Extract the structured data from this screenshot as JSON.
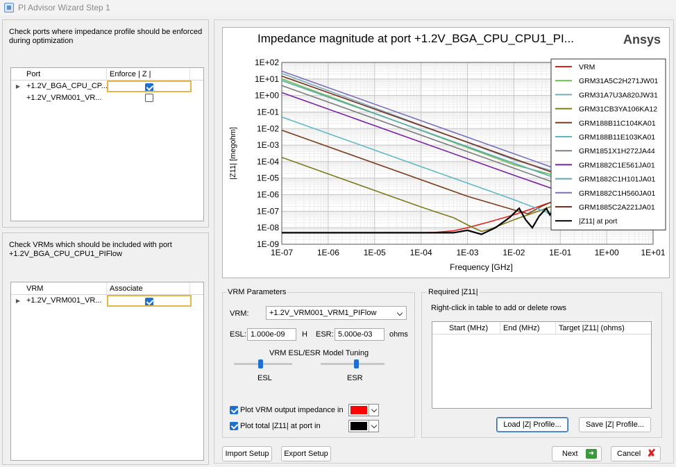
{
  "window": {
    "title": "PI Advisor Wizard Step 1"
  },
  "ports_panel": {
    "instructions": "Check ports where impedance profile should be enforced during optimization",
    "columns": [
      "Port",
      "Enforce | Z |"
    ],
    "rows": [
      {
        "port": "+1.2V_BGA_CPU_CP...",
        "enforce": true
      },
      {
        "port": "+1.2V_VRM001_VR...",
        "enforce": false
      }
    ]
  },
  "vrm_panel": {
    "instructions": "Check VRMs which should be included with port +1.2V_BGA_CPU_CPU1_PIFlow",
    "columns": [
      "VRM",
      "Associate"
    ],
    "rows": [
      {
        "vrm": "+1.2V_VRM001_VR...",
        "associate": true
      }
    ]
  },
  "chart_data": {
    "type": "line",
    "title": "Impedance magnitude at port +1.2V_BGA_CPU_CPU1_PI...",
    "brand": "Ansys",
    "xlabel": "Frequency [GHz]",
    "ylabel": "|Z11| [megohm]",
    "xscale": "log",
    "yscale": "log",
    "xlim": [
      1e-07,
      10
    ],
    "ylim": [
      1e-09,
      100
    ],
    "x_ticks": [
      "1E-07",
      "1E-06",
      "1E-05",
      "1E-04",
      "1E-03",
      "1E-02",
      "1E-01",
      "1E+00",
      "1E+01"
    ],
    "y_ticks": [
      "1E-09",
      "1E-08",
      "1E-07",
      "1E-06",
      "1E-05",
      "1E-04",
      "1E-03",
      "1E-02",
      "1E-01",
      "1E+00",
      "1E+01",
      "1E+02"
    ],
    "grid": true,
    "legend_position": "top-right",
    "series": [
      {
        "name": "VRM",
        "color": "#e8201c",
        "points": [
          [
            1e-07,
            5e-09
          ],
          [
            0.0001,
            5e-09
          ],
          [
            0.0002,
            5.2e-09
          ],
          [
            0.0005,
            6.5e-09
          ],
          [
            0.001,
            1e-08
          ],
          [
            0.003,
            2.3e-08
          ],
          [
            0.01,
            6e-08
          ],
          [
            0.03,
            1.7e-07
          ],
          [
            0.1,
            5.5e-07
          ]
        ]
      },
      {
        "name": "GRM31A5C2H271JW01",
        "color": "#6fbf4f",
        "points": [
          [
            1e-07,
            10
          ],
          [
            0.01,
            6.5e-05
          ],
          [
            0.1,
            1.2e-05
          ]
        ]
      },
      {
        "name": "GRM31A7U3A820JW31",
        "color": "#7aa9b8",
        "points": [
          [
            1e-07,
            22
          ],
          [
            0.01,
            0.00013
          ],
          [
            0.1,
            2e-05
          ]
        ]
      },
      {
        "name": "GRM31CB3YA106KA12",
        "color": "#7d7a17",
        "points": [
          [
            1e-07,
            0.00018
          ],
          [
            0.0001,
            1.8e-07
          ],
          [
            0.0005,
            4e-08
          ],
          [
            0.001,
            1.5e-08
          ],
          [
            0.002,
            6e-09
          ],
          [
            0.003,
            8e-09
          ],
          [
            0.01,
            3e-08
          ],
          [
            0.1,
            3e-07
          ]
        ]
      },
      {
        "name": "GRM188B11C104KA01",
        "color": "#7a3a1a",
        "points": [
          [
            1e-07,
            0.008
          ],
          [
            0.0001,
            8e-06
          ],
          [
            0.001,
            8e-07
          ],
          [
            0.01,
            1.2e-07
          ],
          [
            0.02,
            7e-08
          ],
          [
            0.04,
            2e-07
          ],
          [
            0.1,
            6e-07
          ]
        ]
      },
      {
        "name": "GRM188B11E103KA01",
        "color": "#5fb7c4",
        "points": [
          [
            1e-07,
            0.05
          ],
          [
            0.0001,
            5e-05
          ],
          [
            0.001,
            5e-06
          ],
          [
            0.01,
            5e-07
          ],
          [
            0.05,
            9e-08
          ],
          [
            0.06,
            6e-08
          ],
          [
            0.08,
            1.2e-07
          ],
          [
            0.1,
            2e-07
          ]
        ]
      },
      {
        "name": "GRM1851X1H272JA44",
        "color": "#7d7d7d",
        "points": [
          [
            1e-07,
            4
          ],
          [
            0.01,
            4e-05
          ],
          [
            0.1,
            4e-06
          ]
        ]
      },
      {
        "name": "GRM1882C1E561JA01",
        "color": "#7a1fa5",
        "points": [
          [
            1e-07,
            1.5
          ],
          [
            0.01,
            1.5e-05
          ],
          [
            0.1,
            1.6e-06
          ]
        ]
      },
      {
        "name": "GRM1882C1H101JA01",
        "color": "#5aa8b0",
        "points": [
          [
            1e-07,
            8
          ],
          [
            0.01,
            8e-05
          ],
          [
            0.1,
            8e-06
          ]
        ]
      },
      {
        "name": "GRM1882C1H560JA01",
        "color": "#7a6fbf",
        "points": [
          [
            1e-07,
            30
          ],
          [
            0.01,
            0.0003
          ],
          [
            0.1,
            3e-05
          ]
        ]
      },
      {
        "name": "GRM1885C2A221JA01",
        "color": "#7a2d1f",
        "points": [
          [
            1e-07,
            15
          ],
          [
            0.01,
            0.00015
          ],
          [
            0.1,
            1.5e-05
          ]
        ]
      },
      {
        "name": "|Z11| at port",
        "color": "#000000",
        "points": [
          [
            1e-07,
            5e-09
          ],
          [
            0.0001,
            5e-09
          ],
          [
            0.0005,
            5e-09
          ],
          [
            0.001,
            7e-09
          ],
          [
            0.002,
            4e-09
          ],
          [
            0.004,
            1e-08
          ],
          [
            0.008,
            4e-08
          ],
          [
            0.013,
            1.5e-07
          ],
          [
            0.018,
            3e-08
          ],
          [
            0.025,
            1e-08
          ],
          [
            0.035,
            5e-08
          ],
          [
            0.05,
            1.5e-07
          ],
          [
            0.06,
            6e-08
          ],
          [
            0.07,
            1.3e-07
          ],
          [
            0.1,
            2.2e-07
          ]
        ]
      }
    ]
  },
  "vrm_params": {
    "title": "VRM Parameters",
    "vrm_label": "VRM:",
    "vrm_value": "+1.2V_VRM001_VRM1_PIFlow",
    "esl_label": "ESL:",
    "esl_value": "1.000e-09",
    "esl_unit": "H",
    "esr_label": "ESR:",
    "esr_value": "5.000e-03",
    "esr_unit": "ohms",
    "tuning_title": "VRM ESL/ESR Model Tuning",
    "esl_slider_label": "ESL",
    "esr_slider_label": "ESR",
    "esl_slider_level": 0.45,
    "esr_slider_level": 0.55,
    "plot_vrm_label": "Plot VRM output impedance in",
    "plot_vrm_checked": true,
    "plot_vrm_color": "#ff0000",
    "plot_total_label": "Plot total |Z11| at port in",
    "plot_total_checked": true,
    "plot_total_color": "#000000"
  },
  "required": {
    "title": "Required |Z11|",
    "hint": "Right-click in table to add or delete rows",
    "columns": [
      "Start (MHz)",
      "End (MHz)",
      "Target |Z11| (ohms)"
    ],
    "load_button": "Load |Z| Profile...",
    "save_button": "Save |Z| Profile..."
  },
  "footer": {
    "import_button": "Import Setup",
    "export_button": "Export Setup",
    "next_button": "Next",
    "cancel_button": "Cancel"
  }
}
